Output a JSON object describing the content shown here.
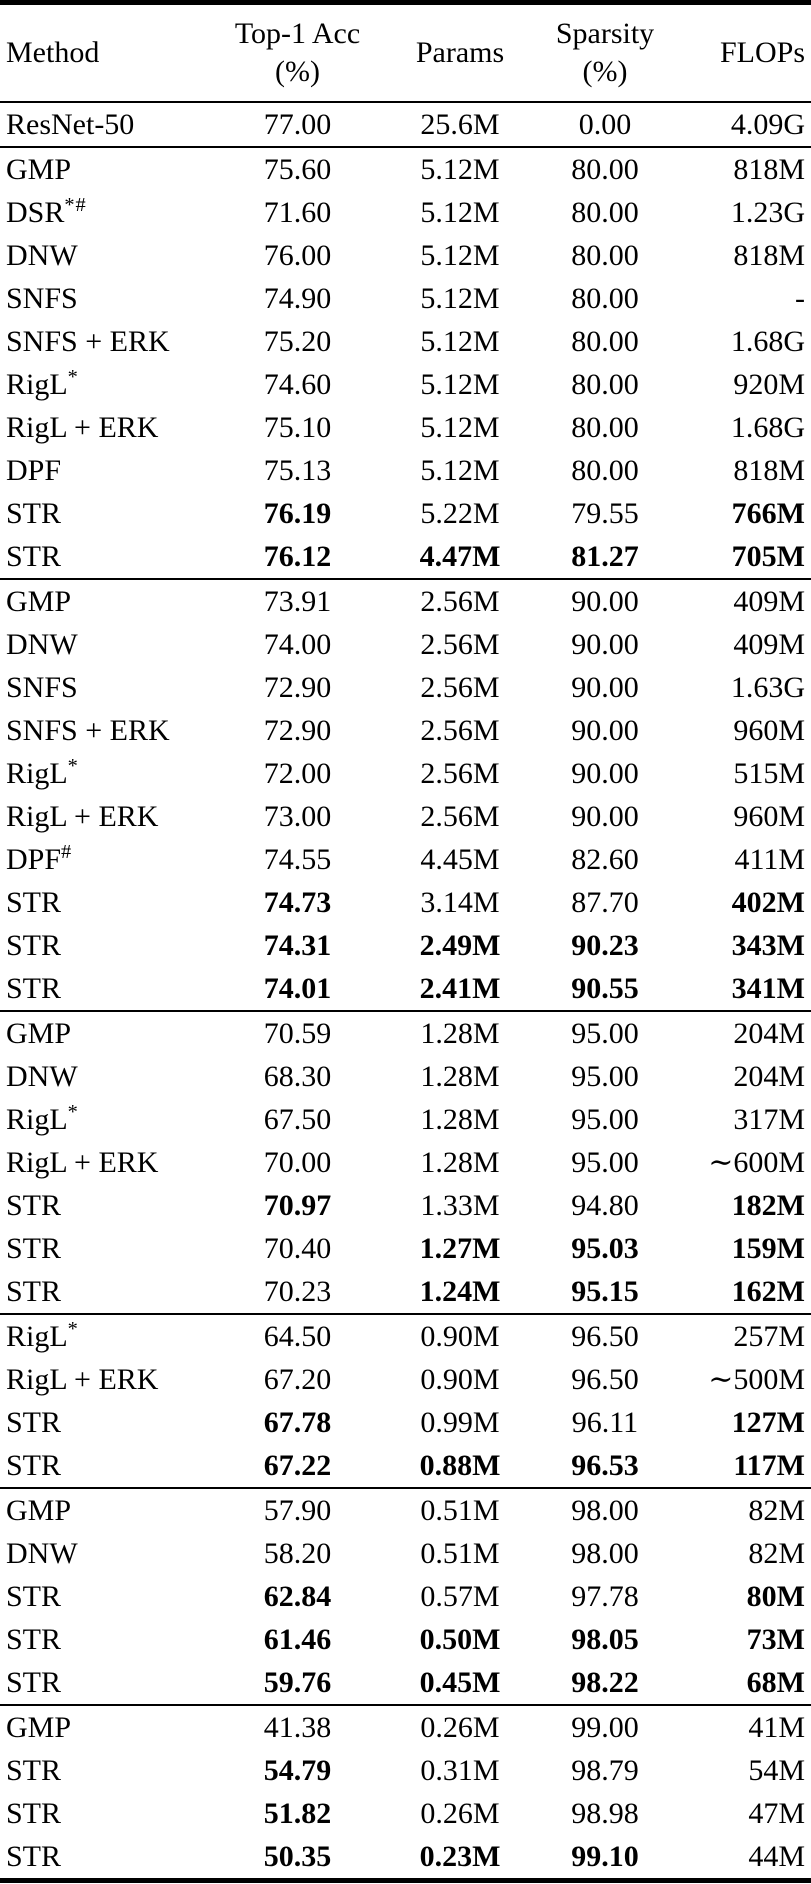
{
  "table": {
    "columns": [
      {
        "key": "method",
        "label": "Method",
        "sublabel": "",
        "align": "left"
      },
      {
        "key": "acc",
        "label": "Top-1 Acc",
        "sublabel": "(%)",
        "align": "center"
      },
      {
        "key": "params",
        "label": "Params",
        "sublabel": "",
        "align": "center"
      },
      {
        "key": "sparsity",
        "label": "Sparsity",
        "sublabel": "(%)",
        "align": "center"
      },
      {
        "key": "flops",
        "label": "FLOPs",
        "sublabel": "",
        "align": "right"
      }
    ],
    "text_color": "#000000",
    "background_color": "#ffffff",
    "sections": [
      {
        "rows": [
          {
            "method": "ResNet-50",
            "sup": "",
            "acc": "77.00",
            "params": "25.6M",
            "sparsity": "0.00",
            "flops": "4.09G",
            "bold": []
          }
        ]
      },
      {
        "rows": [
          {
            "method": "GMP",
            "sup": "",
            "acc": "75.60",
            "params": "5.12M",
            "sparsity": "80.00",
            "flops": "818M",
            "bold": []
          },
          {
            "method": "DSR",
            "sup": "*#",
            "acc": "71.60",
            "params": "5.12M",
            "sparsity": "80.00",
            "flops": "1.23G",
            "bold": []
          },
          {
            "method": "DNW",
            "sup": "",
            "acc": "76.00",
            "params": "5.12M",
            "sparsity": "80.00",
            "flops": "818M",
            "bold": []
          },
          {
            "method": "SNFS",
            "sup": "",
            "acc": "74.90",
            "params": "5.12M",
            "sparsity": "80.00",
            "flops": "-",
            "bold": []
          },
          {
            "method": "SNFS + ERK",
            "sup": "",
            "acc": "75.20",
            "params": "5.12M",
            "sparsity": "80.00",
            "flops": "1.68G",
            "bold": []
          },
          {
            "method": "RigL",
            "sup": "*",
            "acc": "74.60",
            "params": "5.12M",
            "sparsity": "80.00",
            "flops": "920M",
            "bold": []
          },
          {
            "method": "RigL + ERK",
            "sup": "",
            "acc": "75.10",
            "params": "5.12M",
            "sparsity": "80.00",
            "flops": "1.68G",
            "bold": []
          },
          {
            "method": "DPF",
            "sup": "",
            "acc": "75.13",
            "params": "5.12M",
            "sparsity": "80.00",
            "flops": "818M",
            "bold": []
          },
          {
            "method": "STR",
            "sup": "",
            "acc": "76.19",
            "params": "5.22M",
            "sparsity": "79.55",
            "flops": "766M",
            "bold": [
              "acc",
              "flops"
            ]
          },
          {
            "method": "STR",
            "sup": "",
            "acc": "76.12",
            "params": "4.47M",
            "sparsity": "81.27",
            "flops": "705M",
            "bold": [
              "acc",
              "params",
              "sparsity",
              "flops"
            ]
          }
        ]
      },
      {
        "rows": [
          {
            "method": "GMP",
            "sup": "",
            "acc": "73.91",
            "params": "2.56M",
            "sparsity": "90.00",
            "flops": "409M",
            "bold": []
          },
          {
            "method": "DNW",
            "sup": "",
            "acc": "74.00",
            "params": "2.56M",
            "sparsity": "90.00",
            "flops": "409M",
            "bold": []
          },
          {
            "method": "SNFS",
            "sup": "",
            "acc": "72.90",
            "params": "2.56M",
            "sparsity": "90.00",
            "flops": "1.63G",
            "bold": []
          },
          {
            "method": "SNFS + ERK",
            "sup": "",
            "acc": "72.90",
            "params": "2.56M",
            "sparsity": "90.00",
            "flops": "960M",
            "bold": []
          },
          {
            "method": "RigL",
            "sup": "*",
            "acc": "72.00",
            "params": "2.56M",
            "sparsity": "90.00",
            "flops": "515M",
            "bold": []
          },
          {
            "method": "RigL + ERK",
            "sup": "",
            "acc": "73.00",
            "params": "2.56M",
            "sparsity": "90.00",
            "flops": "960M",
            "bold": []
          },
          {
            "method": "DPF",
            "sup": "#",
            "acc": "74.55",
            "params": "4.45M",
            "sparsity": "82.60",
            "flops": "411M",
            "bold": []
          },
          {
            "method": "STR",
            "sup": "",
            "acc": "74.73",
            "params": "3.14M",
            "sparsity": "87.70",
            "flops": "402M",
            "bold": [
              "acc",
              "flops"
            ]
          },
          {
            "method": "STR",
            "sup": "",
            "acc": "74.31",
            "params": "2.49M",
            "sparsity": "90.23",
            "flops": "343M",
            "bold": [
              "acc",
              "params",
              "sparsity",
              "flops"
            ]
          },
          {
            "method": "STR",
            "sup": "",
            "acc": "74.01",
            "params": "2.41M",
            "sparsity": "90.55",
            "flops": "341M",
            "bold": [
              "acc",
              "params",
              "sparsity",
              "flops"
            ]
          }
        ]
      },
      {
        "rows": [
          {
            "method": "GMP",
            "sup": "",
            "acc": "70.59",
            "params": "1.28M",
            "sparsity": "95.00",
            "flops": "204M",
            "bold": []
          },
          {
            "method": "DNW",
            "sup": "",
            "acc": "68.30",
            "params": "1.28M",
            "sparsity": "95.00",
            "flops": "204M",
            "bold": []
          },
          {
            "method": "RigL",
            "sup": "*",
            "acc": "67.50",
            "params": "1.28M",
            "sparsity": "95.00",
            "flops": "317M",
            "bold": []
          },
          {
            "method": "RigL + ERK",
            "sup": "",
            "acc": "70.00",
            "params": "1.28M",
            "sparsity": "95.00",
            "flops": "∼600M",
            "bold": []
          },
          {
            "method": "STR",
            "sup": "",
            "acc": "70.97",
            "params": "1.33M",
            "sparsity": "94.80",
            "flops": "182M",
            "bold": [
              "acc",
              "flops"
            ]
          },
          {
            "method": "STR",
            "sup": "",
            "acc": "70.40",
            "params": "1.27M",
            "sparsity": "95.03",
            "flops": "159M",
            "bold": [
              "params",
              "sparsity",
              "flops"
            ]
          },
          {
            "method": "STR",
            "sup": "",
            "acc": "70.23",
            "params": "1.24M",
            "sparsity": "95.15",
            "flops": "162M",
            "bold": [
              "params",
              "sparsity",
              "flops"
            ]
          }
        ]
      },
      {
        "rows": [
          {
            "method": "RigL",
            "sup": "*",
            "acc": "64.50",
            "params": "0.90M",
            "sparsity": "96.50",
            "flops": "257M",
            "bold": []
          },
          {
            "method": "RigL + ERK",
            "sup": "",
            "acc": "67.20",
            "params": "0.90M",
            "sparsity": "96.50",
            "flops": "∼500M",
            "bold": []
          },
          {
            "method": "STR",
            "sup": "",
            "acc": "67.78",
            "params": "0.99M",
            "sparsity": "96.11",
            "flops": "127M",
            "bold": [
              "acc",
              "flops"
            ]
          },
          {
            "method": "STR",
            "sup": "",
            "acc": "67.22",
            "params": "0.88M",
            "sparsity": "96.53",
            "flops": "117M",
            "bold": [
              "acc",
              "params",
              "sparsity",
              "flops"
            ]
          }
        ]
      },
      {
        "rows": [
          {
            "method": "GMP",
            "sup": "",
            "acc": "57.90",
            "params": "0.51M",
            "sparsity": "98.00",
            "flops": "82M",
            "bold": []
          },
          {
            "method": "DNW",
            "sup": "",
            "acc": "58.20",
            "params": "0.51M",
            "sparsity": "98.00",
            "flops": "82M",
            "bold": []
          },
          {
            "method": "STR",
            "sup": "",
            "acc": "62.84",
            "params": "0.57M",
            "sparsity": "97.78",
            "flops": "80M",
            "bold": [
              "acc",
              "flops"
            ]
          },
          {
            "method": "STR",
            "sup": "",
            "acc": "61.46",
            "params": "0.50M",
            "sparsity": "98.05",
            "flops": "73M",
            "bold": [
              "acc",
              "params",
              "sparsity",
              "flops"
            ]
          },
          {
            "method": "STR",
            "sup": "",
            "acc": "59.76",
            "params": "0.45M",
            "sparsity": "98.22",
            "flops": "68M",
            "bold": [
              "acc",
              "params",
              "sparsity",
              "flops"
            ]
          }
        ]
      },
      {
        "rows": [
          {
            "method": "GMP",
            "sup": "",
            "acc": "41.38",
            "params": "0.26M",
            "sparsity": "99.00",
            "flops": "41M",
            "bold": []
          },
          {
            "method": "STR",
            "sup": "",
            "acc": "54.79",
            "params": "0.31M",
            "sparsity": "98.79",
            "flops": "54M",
            "bold": [
              "acc"
            ]
          },
          {
            "method": "STR",
            "sup": "",
            "acc": "51.82",
            "params": "0.26M",
            "sparsity": "98.98",
            "flops": "47M",
            "bold": [
              "acc"
            ]
          },
          {
            "method": "STR",
            "sup": "",
            "acc": "50.35",
            "params": "0.23M",
            "sparsity": "99.10",
            "flops": "44M",
            "bold": [
              "acc",
              "params",
              "sparsity"
            ]
          }
        ]
      }
    ]
  }
}
